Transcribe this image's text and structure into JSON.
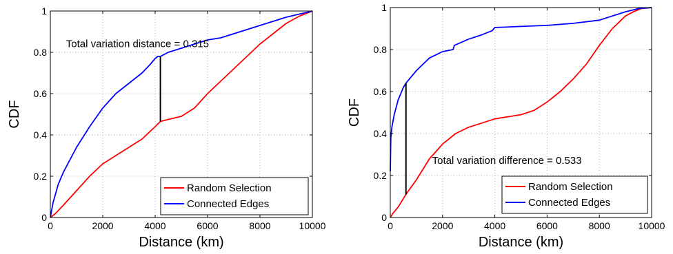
{
  "chart_data": [
    {
      "type": "line",
      "xlabel": "Distance (km)",
      "ylabel": "CDF",
      "xlim": [
        0,
        10000
      ],
      "ylim": [
        0,
        1
      ],
      "xticks": [
        0,
        2000,
        4000,
        6000,
        8000,
        10000
      ],
      "yticks": [
        0,
        0.2,
        0.4,
        0.6,
        0.8,
        1
      ],
      "xtick_labels": [
        "0",
        "2000",
        "4000",
        "6000",
        "8000",
        "10000"
      ],
      "ytick_labels": [
        "0",
        "0.2",
        "0.4",
        "0.6",
        "0.8",
        "1"
      ],
      "grid": true,
      "legend_position": "bottom-right",
      "series": [
        {
          "name": "Random Selection",
          "color": "#ff0000",
          "x": [
            0,
            200,
            500,
            1000,
            1500,
            2000,
            2500,
            3000,
            3500,
            4000,
            4200,
            4500,
            5000,
            5500,
            6000,
            6500,
            7000,
            7500,
            8000,
            8500,
            9000,
            9500,
            10000
          ],
          "y": [
            0,
            0.02,
            0.06,
            0.13,
            0.2,
            0.26,
            0.3,
            0.34,
            0.38,
            0.44,
            0.465,
            0.475,
            0.49,
            0.53,
            0.6,
            0.66,
            0.72,
            0.78,
            0.84,
            0.89,
            0.94,
            0.975,
            1.0
          ]
        },
        {
          "name": "Connected Edges",
          "color": "#0000ff",
          "x": [
            0,
            100,
            300,
            500,
            1000,
            1500,
            2000,
            2500,
            3000,
            3500,
            3800,
            4000,
            4100,
            4200,
            4500,
            5000,
            5500,
            6000,
            6500,
            7000,
            7500,
            8000,
            8500,
            9000,
            9500,
            10000
          ],
          "y": [
            0,
            0.07,
            0.16,
            0.22,
            0.34,
            0.44,
            0.53,
            0.6,
            0.65,
            0.7,
            0.74,
            0.77,
            0.78,
            0.78,
            0.8,
            0.82,
            0.84,
            0.86,
            0.87,
            0.89,
            0.91,
            0.93,
            0.95,
            0.97,
            0.985,
            1.0
          ]
        }
      ],
      "annotation": {
        "text": "Total variation distance = 0.315",
        "line_x": 4200,
        "line_y": [
          0.465,
          0.78
        ],
        "text_x": 600,
        "text_y": 0.825
      }
    },
    {
      "type": "line",
      "xlabel": "Distance (km)",
      "ylabel": "CDF",
      "xlim": [
        0,
        10000
      ],
      "ylim": [
        0,
        1
      ],
      "xticks": [
        0,
        2000,
        4000,
        6000,
        8000,
        10000
      ],
      "yticks": [
        0,
        0.2,
        0.4,
        0.6,
        0.8,
        1
      ],
      "xtick_labels": [
        "0",
        "2000",
        "4000",
        "6000",
        "8000",
        "10000"
      ],
      "ytick_labels": [
        "0",
        "0.2",
        "0.4",
        "0.6",
        "0.8",
        "1"
      ],
      "grid": true,
      "legend_position": "bottom-right",
      "series": [
        {
          "name": "Random Selection",
          "color": "#ff0000",
          "x": [
            0,
            100,
            300,
            600,
            1000,
            1500,
            2000,
            2500,
            3000,
            3500,
            4000,
            4500,
            5000,
            5500,
            6000,
            6500,
            7000,
            7500,
            8000,
            8500,
            9000,
            9300,
            9600,
            10000
          ],
          "y": [
            0,
            0.02,
            0.05,
            0.11,
            0.18,
            0.28,
            0.35,
            0.4,
            0.43,
            0.45,
            0.47,
            0.48,
            0.49,
            0.51,
            0.55,
            0.6,
            0.66,
            0.73,
            0.82,
            0.9,
            0.96,
            0.98,
            0.995,
            1.0
          ]
        },
        {
          "name": "Connected Edges",
          "color": "#0000ff",
          "x": [
            0,
            20,
            60,
            150,
            300,
            500,
            600,
            1000,
            1500,
            2000,
            2400,
            2450,
            3000,
            3500,
            3900,
            4000,
            5000,
            6000,
            7000,
            8000,
            8500,
            9000,
            9500,
            10000
          ],
          "y": [
            0.22,
            0.38,
            0.43,
            0.49,
            0.56,
            0.62,
            0.64,
            0.7,
            0.76,
            0.79,
            0.8,
            0.82,
            0.85,
            0.87,
            0.89,
            0.905,
            0.91,
            0.915,
            0.925,
            0.94,
            0.96,
            0.98,
            0.995,
            1.0
          ]
        }
      ],
      "annotation": {
        "text": "Total variation difference = 0.533",
        "line_x": 600,
        "line_y": [
          0.11,
          0.64
        ],
        "text_x": 1600,
        "text_y": 0.255
      }
    }
  ]
}
